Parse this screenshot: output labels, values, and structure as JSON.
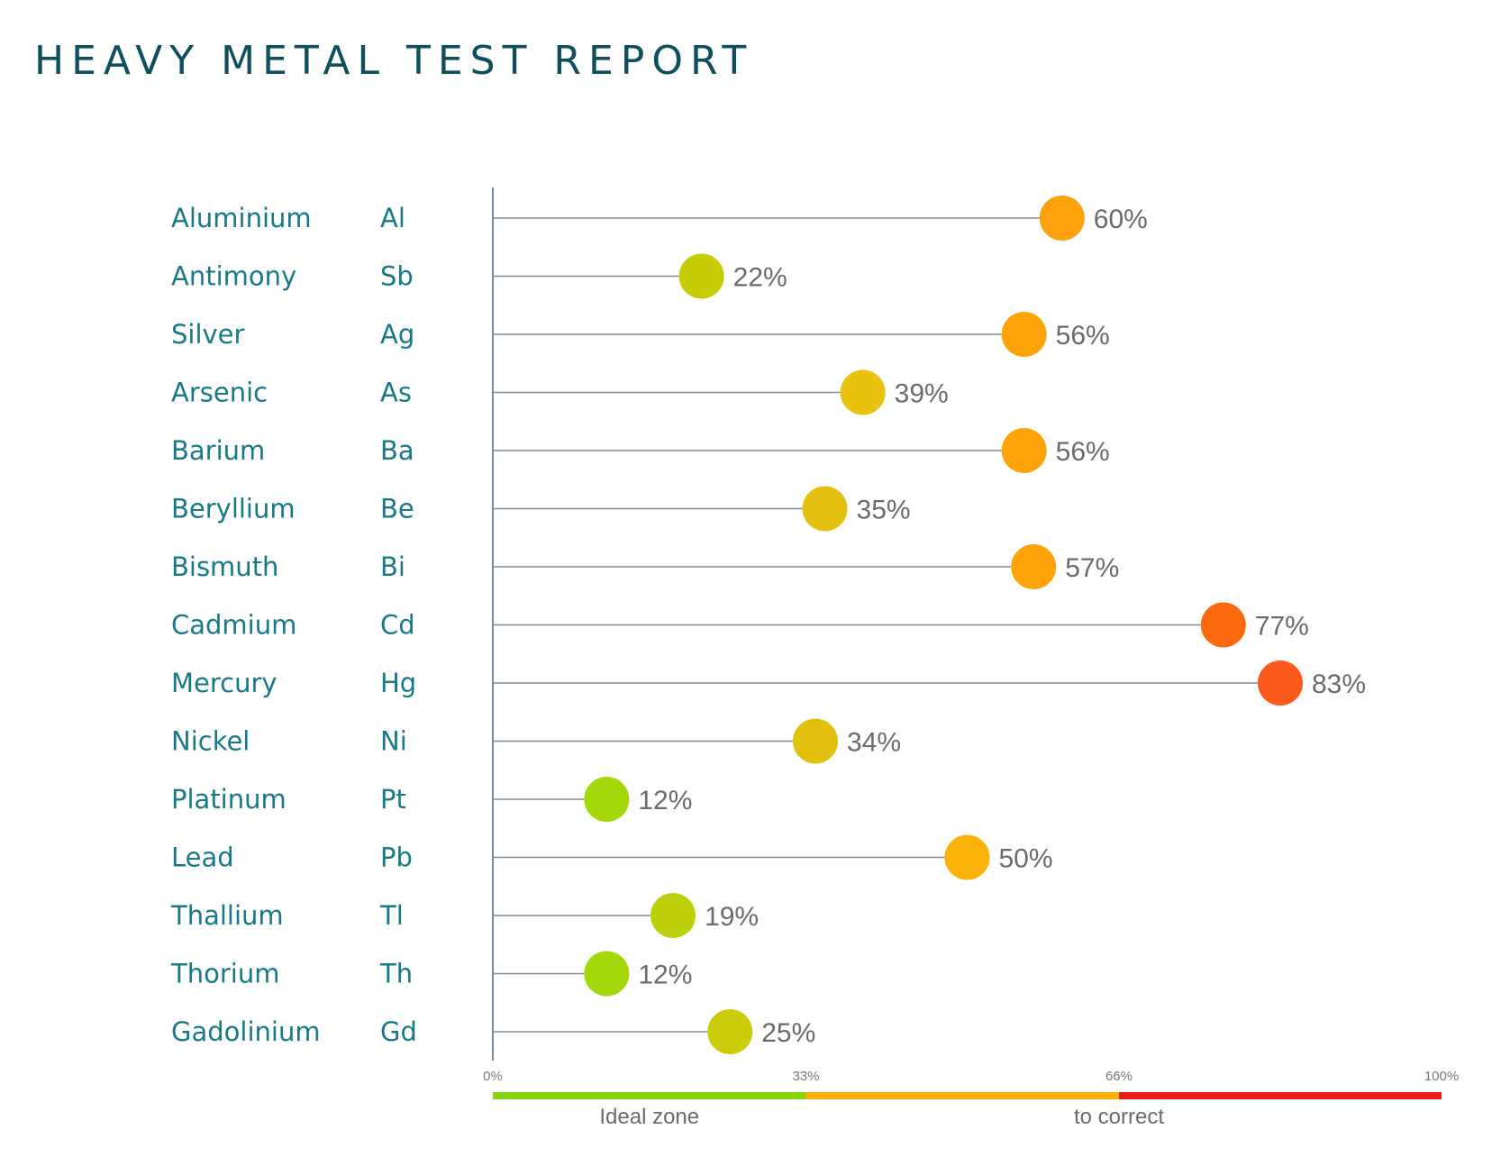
{
  "report": {
    "title": "HEAVY METAL TEST REPORT"
  },
  "colors": {
    "name_text": "#177a86",
    "title_text": "#0e4f5e",
    "axis": "#7d8c99",
    "ideal": "#86d60f",
    "warn": "#fbb10e",
    "danger": "#ea1c1c"
  },
  "chart_data": {
    "type": "lollipop",
    "xlim": [
      0,
      100
    ],
    "ticks": [
      "0%",
      "33%",
      "66%",
      "100%"
    ],
    "tick_values": [
      0,
      33,
      66,
      100
    ],
    "zones": [
      {
        "label": "Ideal zone",
        "from": 0,
        "to": 33,
        "color": "#86d60f"
      },
      {
        "label": "to correct",
        "from": 33,
        "to": 66,
        "color": "#fbb10e"
      },
      {
        "label": "",
        "from": 66,
        "to": 100,
        "color": "#ea1c1c"
      }
    ],
    "rows": [
      {
        "name": "Aluminium",
        "symbol": "Al",
        "value": 60,
        "label": "60%",
        "color": "#fda20c"
      },
      {
        "name": "Antimony",
        "symbol": "Sb",
        "value": 22,
        "label": "22%",
        "color": "#c6cd04"
      },
      {
        "name": "Silver",
        "symbol": "Ag",
        "value": 56,
        "label": "56%",
        "color": "#fea30a"
      },
      {
        "name": "Arsenic",
        "symbol": "As",
        "value": 39,
        "label": "39%",
        "color": "#eac210"
      },
      {
        "name": "Barium",
        "symbol": "Ba",
        "value": 56,
        "label": "56%",
        "color": "#fea30a"
      },
      {
        "name": "Beryllium",
        "symbol": "Be",
        "value": 35,
        "label": "35%",
        "color": "#e4c10f"
      },
      {
        "name": "Bismuth",
        "symbol": "Bi",
        "value": 57,
        "label": "57%",
        "color": "#fea30a"
      },
      {
        "name": "Cadmium",
        "symbol": "Cd",
        "value": 77,
        "label": "77%",
        "color": "#fb6a0e"
      },
      {
        "name": "Mercury",
        "symbol": "Hg",
        "value": 83,
        "label": "83%",
        "color": "#fb5a1c"
      },
      {
        "name": "Nickel",
        "symbol": "Ni",
        "value": 34,
        "label": "34%",
        "color": "#e2c10e"
      },
      {
        "name": "Platinum",
        "symbol": "Pt",
        "value": 12,
        "label": "12%",
        "color": "#a4d80a"
      },
      {
        "name": "Lead",
        "symbol": "Pb",
        "value": 50,
        "label": "50%",
        "color": "#fbb30a"
      },
      {
        "name": "Thallium",
        "symbol": "Tl",
        "value": 19,
        "label": "19%",
        "color": "#bcd10a"
      },
      {
        "name": "Thorium",
        "symbol": "Th",
        "value": 12,
        "label": "12%",
        "color": "#a4d80a"
      },
      {
        "name": "Gadolinium",
        "symbol": "Gd",
        "value": 25,
        "label": "25%",
        "color": "#cccd0a"
      }
    ]
  }
}
